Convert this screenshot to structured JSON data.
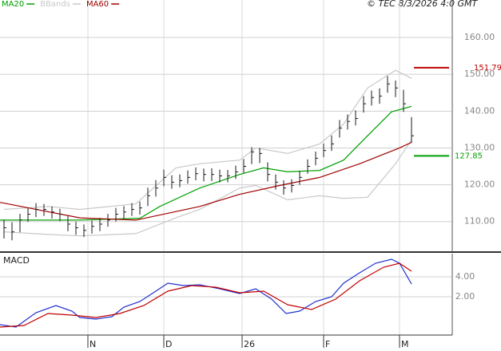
{
  "chart_data": [
    {
      "type": "ohlc",
      "source": "© TEC 8/3/2026 4:0 GMT",
      "xlim": [
        -0.5,
        56
      ],
      "ylim": [
        101.7,
        170.2
      ],
      "yticks": [
        {
          "value": 110,
          "label": "110.00"
        },
        {
          "value": 120,
          "label": "120.00"
        },
        {
          "value": 130,
          "label": "130.00"
        },
        {
          "value": 140,
          "label": "140.00"
        },
        {
          "value": 150,
          "label": "150.00"
        },
        {
          "value": 160,
          "label": "160.00"
        }
      ],
      "grid": true,
      "bars": {
        "color": "#1a1a1a",
        "high": [
          110.5,
          109.8,
          112.1,
          113.6,
          115,
          114.8,
          114.1,
          113.5,
          111.6,
          110,
          109.2,
          110.3,
          111,
          112.1,
          113.7,
          114.2,
          115,
          115.4,
          119.2,
          121.3,
          124.1,
          122.6,
          122.8,
          123.9,
          124.7,
          124.4,
          124.5,
          124.1,
          124,
          125.2,
          127,
          130.2,
          130,
          126.1,
          122.8,
          121.2,
          121.5,
          123.8,
          126.9,
          129,
          131.2,
          133.4,
          137.6,
          139.1,
          140.2,
          144.1,
          145.6,
          146.2,
          149.5,
          148.3,
          145.8,
          138.4
        ],
        "low": [
          105.4,
          104.9,
          107.1,
          109.9,
          111.2,
          111.5,
          110.8,
          110.1,
          107.4,
          106.4,
          105.8,
          106.7,
          107.4,
          108.6,
          110,
          110.8,
          111.5,
          111.9,
          114.2,
          116.8,
          119.6,
          118.9,
          119.3,
          120.3,
          121.2,
          120.9,
          121,
          120.6,
          120.7,
          121.6,
          123.2,
          125.6,
          125.9,
          120.9,
          118.7,
          117.3,
          117.9,
          120,
          123,
          125.3,
          127.5,
          129.2,
          132.8,
          135,
          136.1,
          139.6,
          141.5,
          142,
          145,
          143.8,
          139.8,
          131.4
        ],
        "close": [
          108.3,
          107.2,
          110.4,
          112,
          113.3,
          113.3,
          112.6,
          112,
          109.3,
          108.3,
          107.6,
          108.7,
          109.3,
          110.4,
          112,
          112.6,
          113.3,
          113.7,
          117,
          119.1,
          122,
          120.7,
          121.1,
          122,
          123,
          122.8,
          122.8,
          122.4,
          122.4,
          123.5,
          125,
          128.9,
          128.5,
          122.8,
          120.7,
          119.1,
          119.8,
          122,
          125,
          127.2,
          129.3,
          131.1,
          135.4,
          137.2,
          138,
          142,
          143.7,
          144.1,
          147.4,
          146.3,
          142,
          133.3
        ]
      },
      "series": [
        {
          "name": "MA20",
          "color": "#00a000",
          "x": [
            -0.5,
            9.5,
            17,
            19.5,
            24.5,
            29.5,
            32.5,
            35.5,
            39.5,
            42.5,
            45.5,
            48.5,
            51
          ],
          "values": [
            110.4,
            110.4,
            110.9,
            114.1,
            119.1,
            122.8,
            124.6,
            123.5,
            123.9,
            126.7,
            133.3,
            139.8,
            141.3
          ]
        },
        {
          "name": "BBands",
          "color": "#c8c8c8",
          "x": [
            0,
            5.5,
            9.5,
            16.5,
            21.5,
            24.5,
            29.5,
            31.5,
            35.5,
            39.5,
            42.5,
            45.5,
            49,
            51
          ],
          "values": [
            113.3,
            114.1,
            113.3,
            114.8,
            124.6,
            125.7,
            126.7,
            130,
            128.5,
            131.1,
            136.5,
            146.3,
            151.1,
            148.9
          ],
          "lower": [
            107.2,
            106.5,
            106.1,
            106.7,
            111,
            113.3,
            119.1,
            119.8,
            115.9,
            117,
            116.3,
            116.6,
            125.7,
            132.2
          ]
        },
        {
          "name": "MA60",
          "color": "#a00000",
          "x": [
            -0.5,
            9.5,
            16.5,
            24.5,
            29.5,
            34.5,
            39.5,
            44.5,
            49.5,
            51
          ],
          "values": [
            115.2,
            111,
            110.4,
            114.1,
            117.4,
            119.8,
            122,
            125.7,
            130,
            131.5
          ]
        }
      ],
      "markers": [
        {
          "value": 151.79,
          "color": "#c00000"
        },
        {
          "value": 127.85,
          "color": "#00a000"
        }
      ]
    },
    {
      "type": "macd",
      "title": "MACD",
      "xlim": [
        -0.5,
        56
      ],
      "ylim": [
        -1.84,
        6.32
      ],
      "yticks": [
        {
          "value": 2,
          "label": "2.00"
        },
        {
          "value": 4,
          "label": "4.00"
        }
      ],
      "xticks": [
        {
          "value": 10.5,
          "label": "N"
        },
        {
          "value": 20,
          "label": "D"
        },
        {
          "value": 29.8,
          "label": "26"
        },
        {
          "value": 40,
          "label": "F"
        },
        {
          "value": 49.5,
          "label": "M"
        }
      ],
      "series": [
        {
          "color": "#2030d0",
          "x": [
            -0.5,
            1.5,
            4,
            6.5,
            8.5,
            9.5,
            11.5,
            13.5,
            15,
            17,
            19,
            20.5,
            22.5,
            24.5,
            27,
            29.5,
            31.5,
            33.5,
            35.3,
            37,
            39,
            41,
            42.5,
            44.5,
            46.5,
            48.5,
            49.5,
            51
          ],
          "values": [
            -0.8,
            -1.04,
            0.4,
            1.12,
            0.56,
            -0.08,
            -0.24,
            0,
            0.96,
            1.52,
            2.56,
            3.36,
            3.12,
            3.2,
            2.8,
            2.32,
            2.8,
            1.76,
            0.32,
            0.56,
            1.52,
            2,
            3.36,
            4.4,
            5.36,
            5.76,
            5.36,
            3.28
          ]
        },
        {
          "color": "#c00000",
          "x": [
            -0.5,
            2.5,
            5.5,
            8.5,
            11.5,
            14.5,
            17.5,
            20.5,
            23.5,
            26.5,
            29.5,
            32.5,
            35.5,
            38.5,
            41.5,
            44.5,
            47.5,
            49.5,
            51
          ],
          "values": [
            -1.04,
            -0.88,
            0.32,
            0.16,
            -0.08,
            0.32,
            1.12,
            2.56,
            3.12,
            2.96,
            2.4,
            2.56,
            1.2,
            0.72,
            1.76,
            3.6,
            4.96,
            5.36,
            4.56
          ]
        }
      ]
    }
  ]
}
